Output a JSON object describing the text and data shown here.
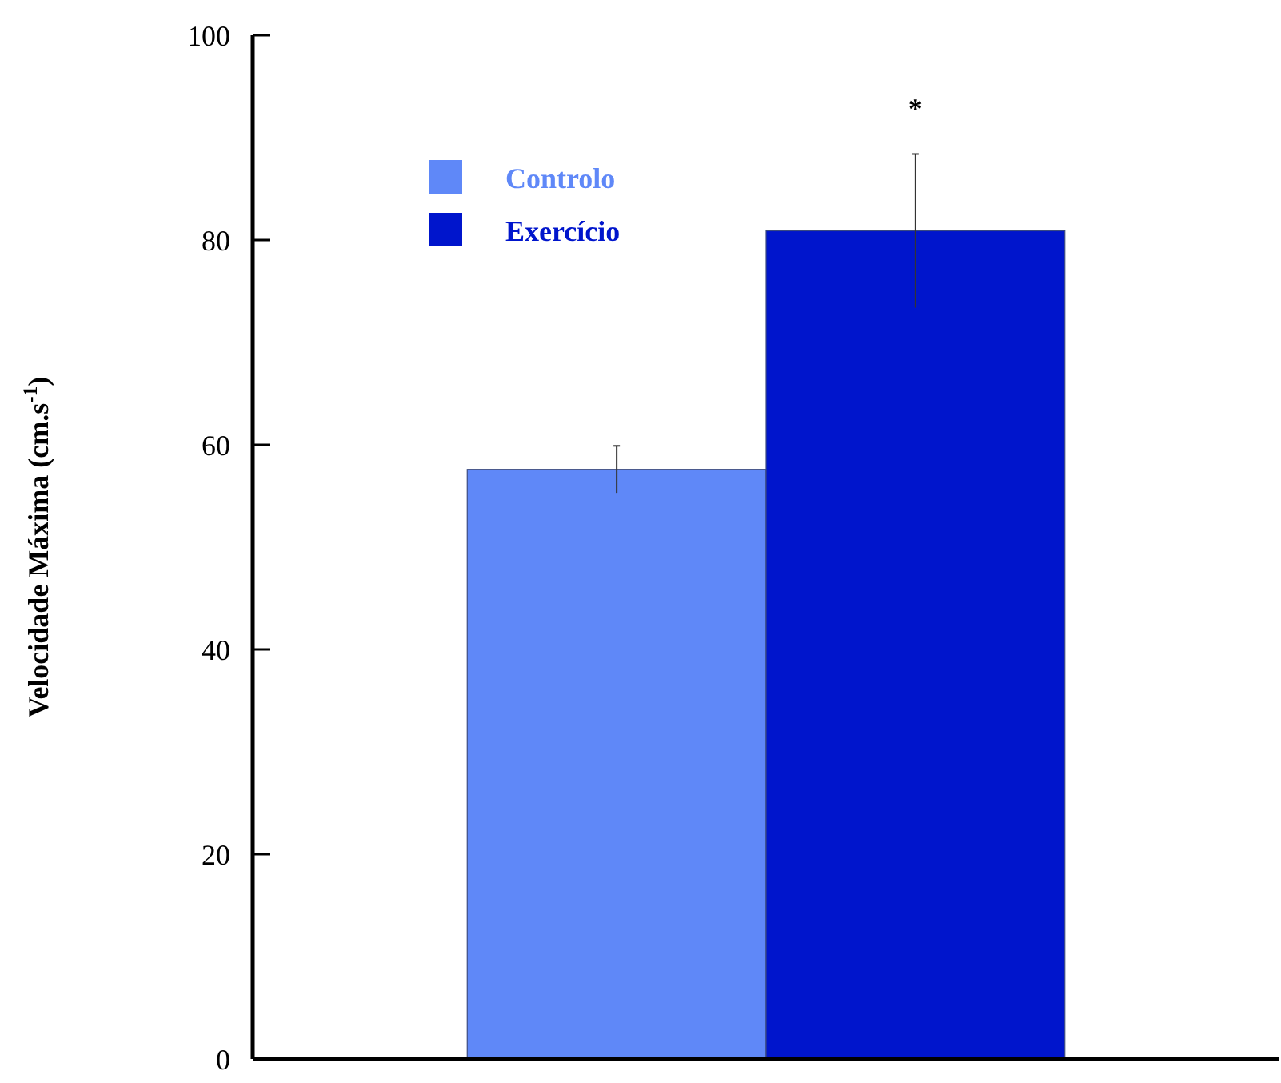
{
  "chart_data": {
    "type": "bar",
    "ylabel": "Velocidade Máxima (cm.s$^{-1}$)",
    "categories": [
      null
    ],
    "series": [
      {
        "name": "Controlo",
        "color": "#5f88f8",
        "values": [
          57.6
        ],
        "errors": [
          2.3
        ]
      },
      {
        "name": "Exercício",
        "color": "#0015cc",
        "values": [
          80.9
        ],
        "errors": [
          7.5
        ]
      }
    ],
    "ylim": [
      0,
      100
    ],
    "yticks": [
      0,
      20,
      40,
      60,
      80,
      100
    ],
    "legend": "top left",
    "annotations": [
      "*"
    ]
  }
}
